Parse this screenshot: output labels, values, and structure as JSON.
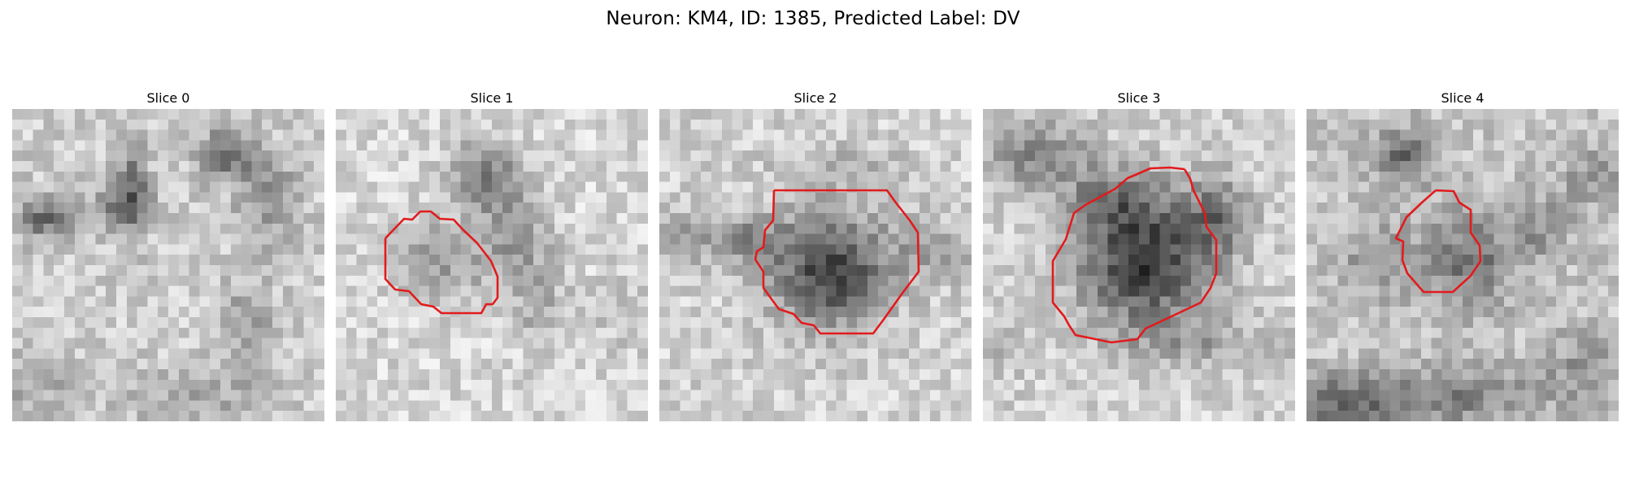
{
  "figure": {
    "title": "Neuron: KM4, ID: 1385, Predicted Label: DV"
  },
  "colors": {
    "background": "#ffffff",
    "contour": "#e31a1c"
  },
  "panels": [
    {
      "label": "Slice 0",
      "image": "grayscale-em-crop",
      "has_outline": false
    },
    {
      "label": "Slice 1",
      "image": "grayscale-em-crop",
      "has_outline": true
    },
    {
      "label": "Slice 2",
      "image": "grayscale-em-crop",
      "has_outline": true
    },
    {
      "label": "Slice 3",
      "image": "grayscale-em-crop",
      "has_outline": true
    },
    {
      "label": "Slice 4",
      "image": "grayscale-em-crop",
      "has_outline": true
    }
  ]
}
